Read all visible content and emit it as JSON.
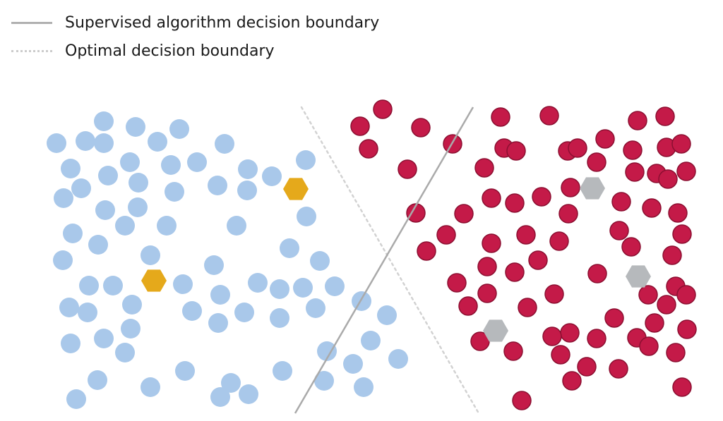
{
  "legend": {
    "supervised_label": "Supervised algorithm decision boundary",
    "optimal_label": "Optimal decision boundary"
  },
  "colors": {
    "blue_class": "#a9c8ea",
    "red_class": "#c41a48",
    "red_stroke": "#8c0f31",
    "labeled_blue": "#e5a91b",
    "labeled_red": "#b6b9bc",
    "supervised_line": "#aaaaaa",
    "optimal_line": "#d2d2d2"
  },
  "blue_points": [
    [
      80,
      203
    ],
    [
      121,
      200
    ],
    [
      147,
      172
    ],
    [
      147,
      203
    ],
    [
      192,
      180
    ],
    [
      223,
      201
    ],
    [
      254,
      183
    ],
    [
      318,
      204
    ],
    [
      100,
      239
    ],
    [
      153,
      249
    ],
    [
      184,
      230
    ],
    [
      242,
      234
    ],
    [
      279,
      230
    ],
    [
      351,
      240
    ],
    [
      385,
      250
    ],
    [
      433,
      227
    ],
    [
      90,
      281
    ],
    [
      115,
      267
    ],
    [
      196,
      259
    ],
    [
      247,
      272
    ],
    [
      308,
      263
    ],
    [
      350,
      270
    ],
    [
      149,
      298
    ],
    [
      195,
      294
    ],
    [
      177,
      320
    ],
    [
      236,
      320
    ],
    [
      335,
      320
    ],
    [
      434,
      307
    ],
    [
      103,
      331
    ],
    [
      139,
      347
    ],
    [
      213,
      362
    ],
    [
      410,
      352
    ],
    [
      89,
      369
    ],
    [
      303,
      376
    ],
    [
      453,
      370
    ],
    [
      126,
      405
    ],
    [
      160,
      405
    ],
    [
      259,
      403
    ],
    [
      365,
      401
    ],
    [
      396,
      410
    ],
    [
      429,
      408
    ],
    [
      474,
      406
    ],
    [
      98,
      436
    ],
    [
      124,
      443
    ],
    [
      187,
      432
    ],
    [
      272,
      441
    ],
    [
      312,
      418
    ],
    [
      346,
      443
    ],
    [
      396,
      451
    ],
    [
      447,
      437
    ],
    [
      512,
      427
    ],
    [
      185,
      466
    ],
    [
      309,
      458
    ],
    [
      548,
      447
    ],
    [
      100,
      487
    ],
    [
      147,
      480
    ],
    [
      177,
      500
    ],
    [
      463,
      498
    ],
    [
      525,
      483
    ],
    [
      564,
      509
    ],
    [
      500,
      516
    ],
    [
      262,
      526
    ],
    [
      400,
      526
    ],
    [
      138,
      539
    ],
    [
      213,
      549
    ],
    [
      327,
      543
    ],
    [
      352,
      559
    ],
    [
      459,
      540
    ],
    [
      515,
      549
    ],
    [
      108,
      566
    ],
    [
      312,
      563
    ]
  ],
  "red_points": [
    [
      542,
      155
    ],
    [
      510,
      179
    ],
    [
      596,
      181
    ],
    [
      522,
      211
    ],
    [
      641,
      204
    ],
    [
      709,
      166
    ],
    [
      778,
      164
    ],
    [
      903,
      171
    ],
    [
      942,
      165
    ],
    [
      714,
      210
    ],
    [
      731,
      214
    ],
    [
      804,
      214
    ],
    [
      818,
      210
    ],
    [
      857,
      197
    ],
    [
      896,
      213
    ],
    [
      944,
      209
    ],
    [
      965,
      204
    ],
    [
      577,
      240
    ],
    [
      686,
      238
    ],
    [
      845,
      230
    ],
    [
      899,
      244
    ],
    [
      930,
      246
    ],
    [
      946,
      254
    ],
    [
      972,
      243
    ],
    [
      808,
      266
    ],
    [
      696,
      281
    ],
    [
      729,
      288
    ],
    [
      767,
      279
    ],
    [
      880,
      286
    ],
    [
      589,
      302
    ],
    [
      657,
      303
    ],
    [
      805,
      303
    ],
    [
      923,
      295
    ],
    [
      960,
      302
    ],
    [
      632,
      333
    ],
    [
      745,
      333
    ],
    [
      792,
      342
    ],
    [
      877,
      327
    ],
    [
      966,
      332
    ],
    [
      696,
      345
    ],
    [
      894,
      350
    ],
    [
      604,
      356
    ],
    [
      952,
      362
    ],
    [
      762,
      369
    ],
    [
      690,
      378
    ],
    [
      729,
      386
    ],
    [
      846,
      388
    ],
    [
      647,
      401
    ],
    [
      690,
      416
    ],
    [
      785,
      417
    ],
    [
      957,
      406
    ],
    [
      918,
      418
    ],
    [
      972,
      418
    ],
    [
      663,
      434
    ],
    [
      747,
      436
    ],
    [
      944,
      432
    ],
    [
      870,
      451
    ],
    [
      927,
      458
    ],
    [
      807,
      472
    ],
    [
      782,
      477
    ],
    [
      845,
      480
    ],
    [
      902,
      479
    ],
    [
      973,
      467
    ],
    [
      680,
      484
    ],
    [
      727,
      498
    ],
    [
      794,
      503
    ],
    [
      919,
      491
    ],
    [
      957,
      500
    ],
    [
      831,
      520
    ],
    [
      876,
      523
    ],
    [
      810,
      540
    ],
    [
      966,
      549
    ],
    [
      739,
      568
    ]
  ],
  "labeled_blue": [
    [
      419,
      268
    ],
    [
      218,
      398
    ]
  ],
  "labeled_red": [
    [
      839,
      267
    ],
    [
      904,
      392
    ],
    [
      702,
      469
    ]
  ],
  "supervised_boundary": [
    [
      418,
      586
    ],
    [
      670,
      152
    ]
  ],
  "optimal_boundary": [
    [
      427,
      152
    ],
    [
      678,
      586
    ]
  ]
}
